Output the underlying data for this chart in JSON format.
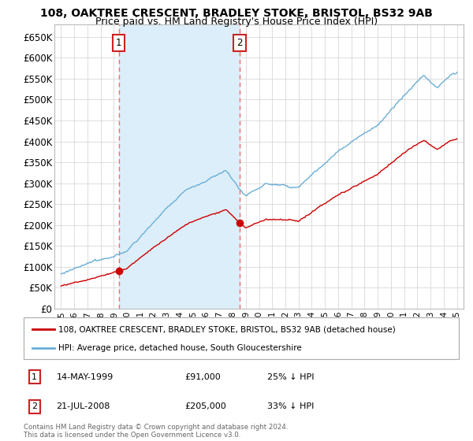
{
  "title_line1": "108, OAKTREE CRESCENT, BRADLEY STOKE, BRISTOL, BS32 9AB",
  "title_line2": "Price paid vs. HM Land Registry's House Price Index (HPI)",
  "ylim": [
    0,
    680000
  ],
  "yticks": [
    0,
    50000,
    100000,
    150000,
    200000,
    250000,
    300000,
    350000,
    400000,
    450000,
    500000,
    550000,
    600000,
    650000
  ],
  "ytick_labels": [
    "£0",
    "£50K",
    "£100K",
    "£150K",
    "£200K",
    "£250K",
    "£300K",
    "£350K",
    "£400K",
    "£450K",
    "£500K",
    "£550K",
    "£600K",
    "£650K"
  ],
  "hpi_color": "#6baed6",
  "hpi_fill_color": "#dceefa",
  "price_color": "#cc0000",
  "vline_color": "#e87070",
  "purchase1_x": 1999.37,
  "purchase1_y": 91000,
  "purchase2_x": 2008.55,
  "purchase2_y": 205000,
  "xlim_min": 1994.5,
  "xlim_max": 2025.5,
  "legend_label1": "108, OAKTREE CRESCENT, BRADLEY STOKE, BRISTOL, BS32 9AB (detached house)",
  "legend_label2": "HPI: Average price, detached house, South Gloucestershire",
  "note1_num": "1",
  "note1_date": "14-MAY-1999",
  "note1_price": "£91,000",
  "note1_hpi": "25% ↓ HPI",
  "note2_num": "2",
  "note2_date": "21-JUL-2008",
  "note2_price": "£205,000",
  "note2_hpi": "33% ↓ HPI",
  "footer": "Contains HM Land Registry data © Crown copyright and database right 2024.\nThis data is licensed under the Open Government Licence v3.0.",
  "bg_color": "#ffffff",
  "grid_color": "#d8d8d8",
  "title_fontsize": 10,
  "subtitle_fontsize": 9,
  "box_edge_color": "#cc2222"
}
